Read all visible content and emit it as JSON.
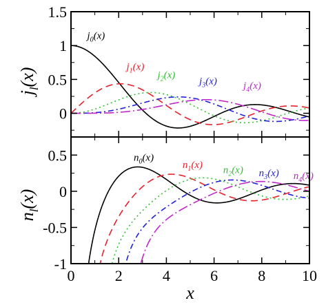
{
  "chart_data": [
    {
      "type": "line",
      "panel": "top",
      "xlabel": "",
      "ylabel": "j_l(x)",
      "ylabel_main": "j",
      "ylabel_sub": "l",
      "ylabel_tail": "(x)",
      "xlim": [
        0,
        10
      ],
      "ylim": [
        -0.35,
        1.5
      ],
      "yticks": [
        1.5,
        1,
        0.5,
        0
      ],
      "ytick_labels": [
        "1.5",
        "1",
        "0.5",
        "0"
      ],
      "function_family": "spherical-bessel-j",
      "series": [
        {
          "name": "j_0(x)",
          "order": 0,
          "color": "#000000",
          "dash": "",
          "label_main": "j",
          "label_sub": "0",
          "label_tail": "(x)",
          "label_x": 1.05,
          "label_y": 1.1
        },
        {
          "name": "j_1(x)",
          "order": 1,
          "color": "#e8202a",
          "dash": "10,6",
          "label_main": "j",
          "label_sub": "1",
          "label_tail": "(x)",
          "label_x": 2.7,
          "label_y": 0.64
        },
        {
          "name": "j_2(x)",
          "order": 2,
          "color": "#2ec22e",
          "dash": "2,4",
          "label_main": "j",
          "label_sub": "2",
          "label_tail": "(x)",
          "label_x": 4.0,
          "label_y": 0.52
        },
        {
          "name": "j_3(x)",
          "order": 3,
          "color": "#1f1fe0",
          "dash": "8,4,2,4",
          "label_main": "j",
          "label_sub": "3",
          "label_tail": "(x)",
          "label_x": 5.75,
          "label_y": 0.43
        },
        {
          "name": "j_4(x)",
          "order": 4,
          "color": "#c026c9",
          "dash": "14,4,2,4",
          "label_main": "j",
          "label_sub": "4",
          "label_tail": "(x)",
          "label_x": 7.6,
          "label_y": 0.36
        }
      ]
    },
    {
      "type": "line",
      "panel": "bottom",
      "xlabel": "x",
      "ylabel": "n_l(x)",
      "ylabel_main": "n",
      "ylabel_sub": "l",
      "ylabel_tail": "(x)",
      "xlim": [
        0,
        10
      ],
      "ylim": [
        -1,
        0.75
      ],
      "yticks": [
        0.5,
        0,
        -0.5,
        -1
      ],
      "ytick_labels": [
        "0.5",
        "0",
        "-0.5",
        "-1"
      ],
      "xticks": [
        0,
        2,
        4,
        6,
        8,
        10
      ],
      "xtick_labels": [
        "0",
        "2",
        "4",
        "6",
        "8",
        "10"
      ],
      "function_family": "spherical-bessel-y",
      "series": [
        {
          "name": "n_0(x)",
          "order": 0,
          "color": "#000000",
          "dash": "",
          "label_main": "n",
          "label_sub": "0",
          "label_tail": "(x)",
          "label_x": 3.05,
          "label_y": 0.42
        },
        {
          "name": "n_1(x)",
          "order": 1,
          "color": "#e8202a",
          "dash": "10,6",
          "label_main": "n",
          "label_sub": "1",
          "label_tail": "(x)",
          "label_x": 5.1,
          "label_y": 0.32
        },
        {
          "name": "n_2(x)",
          "order": 2,
          "color": "#2ec22e",
          "dash": "2,4",
          "label_main": "n",
          "label_sub": "2",
          "label_tail": "(x)",
          "label_x": 6.8,
          "label_y": 0.25
        },
        {
          "name": "n_3(x)",
          "order": 3,
          "color": "#1f1fe0",
          "dash": "8,4,2,4",
          "label_main": "n",
          "label_sub": "3",
          "label_tail": "(x)",
          "label_x": 8.3,
          "label_y": 0.21
        },
        {
          "name": "n_4(x)",
          "order": 4,
          "color": "#c026c9",
          "dash": "14,4,2,4",
          "label_main": "n",
          "label_sub": "4",
          "label_tail": "(x)",
          "label_x": 9.75,
          "label_y": 0.17
        }
      ]
    }
  ]
}
